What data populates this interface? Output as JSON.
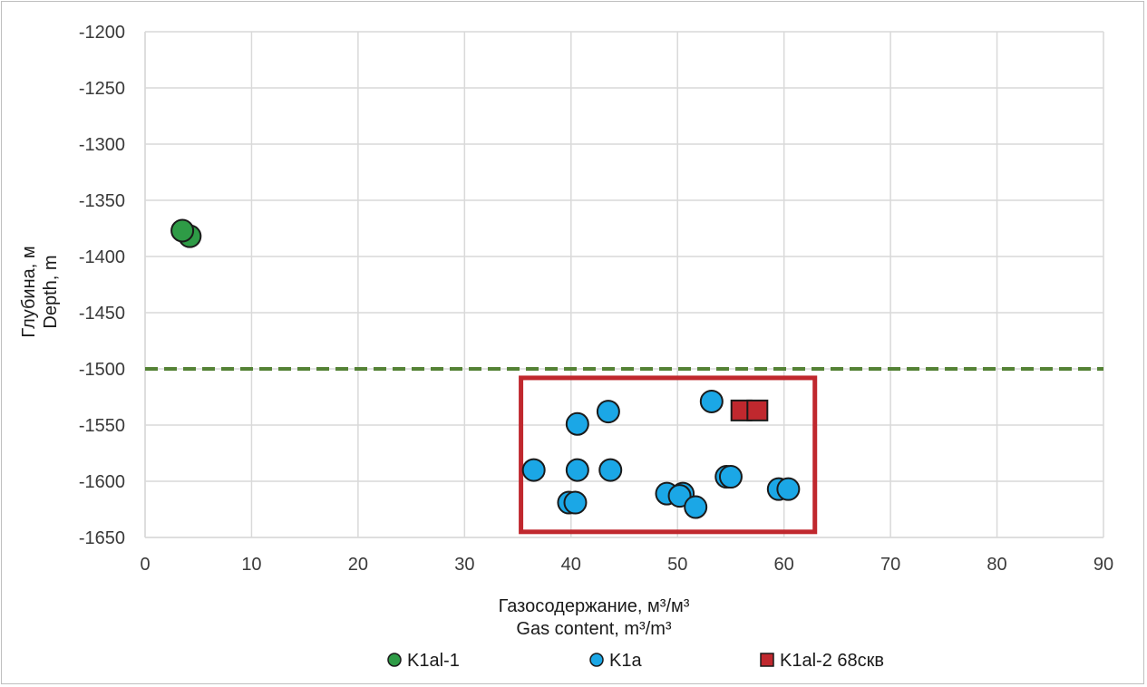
{
  "chart_data": {
    "type": "scatter",
    "xlabel": [
      "Газосодержание, м³/м³",
      "Gas content, m³/m³"
    ],
    "ylabel": [
      "Глубина, м",
      "Depth, m"
    ],
    "xlim": [
      0,
      90
    ],
    "ylim": [
      -1650,
      -1200
    ],
    "x_ticks": [
      0,
      10,
      20,
      30,
      40,
      50,
      60,
      70,
      80,
      90
    ],
    "y_ticks": [
      -1200,
      -1250,
      -1300,
      -1350,
      -1400,
      -1450,
      -1500,
      -1550,
      -1600,
      -1650
    ],
    "grid": true,
    "legend_position": "bottom",
    "reference_line": {
      "y": -1500,
      "style": "dashed",
      "color": "#548235"
    },
    "highlight_box": {
      "x": [
        35.3,
        62.9
      ],
      "y": [
        -1645,
        -1508
      ],
      "color": "#c0282e"
    },
    "series": [
      {
        "name": "K1al-1",
        "marker": "circle",
        "color": "#2e9b46",
        "points": [
          [
            4.2,
            -1382
          ],
          [
            3.5,
            -1377
          ]
        ]
      },
      {
        "name": "K1a",
        "marker": "circle",
        "color": "#1ba7e6",
        "points": [
          [
            53.2,
            -1529
          ],
          [
            43.5,
            -1538
          ],
          [
            40.6,
            -1549
          ],
          [
            36.5,
            -1590
          ],
          [
            40.6,
            -1590
          ],
          [
            43.7,
            -1590
          ],
          [
            54.6,
            -1596
          ],
          [
            55.0,
            -1596
          ],
          [
            49.0,
            -1611
          ],
          [
            50.5,
            -1611
          ],
          [
            50.2,
            -1613
          ],
          [
            59.5,
            -1607
          ],
          [
            60.4,
            -1607
          ],
          [
            51.7,
            -1623
          ],
          [
            39.8,
            -1619
          ],
          [
            40.4,
            -1619
          ]
        ]
      },
      {
        "name": "K1al-2 68скв",
        "marker": "square",
        "color": "#c0282e",
        "points": [
          [
            56.0,
            -1537
          ],
          [
            57.5,
            -1537
          ]
        ]
      }
    ]
  }
}
